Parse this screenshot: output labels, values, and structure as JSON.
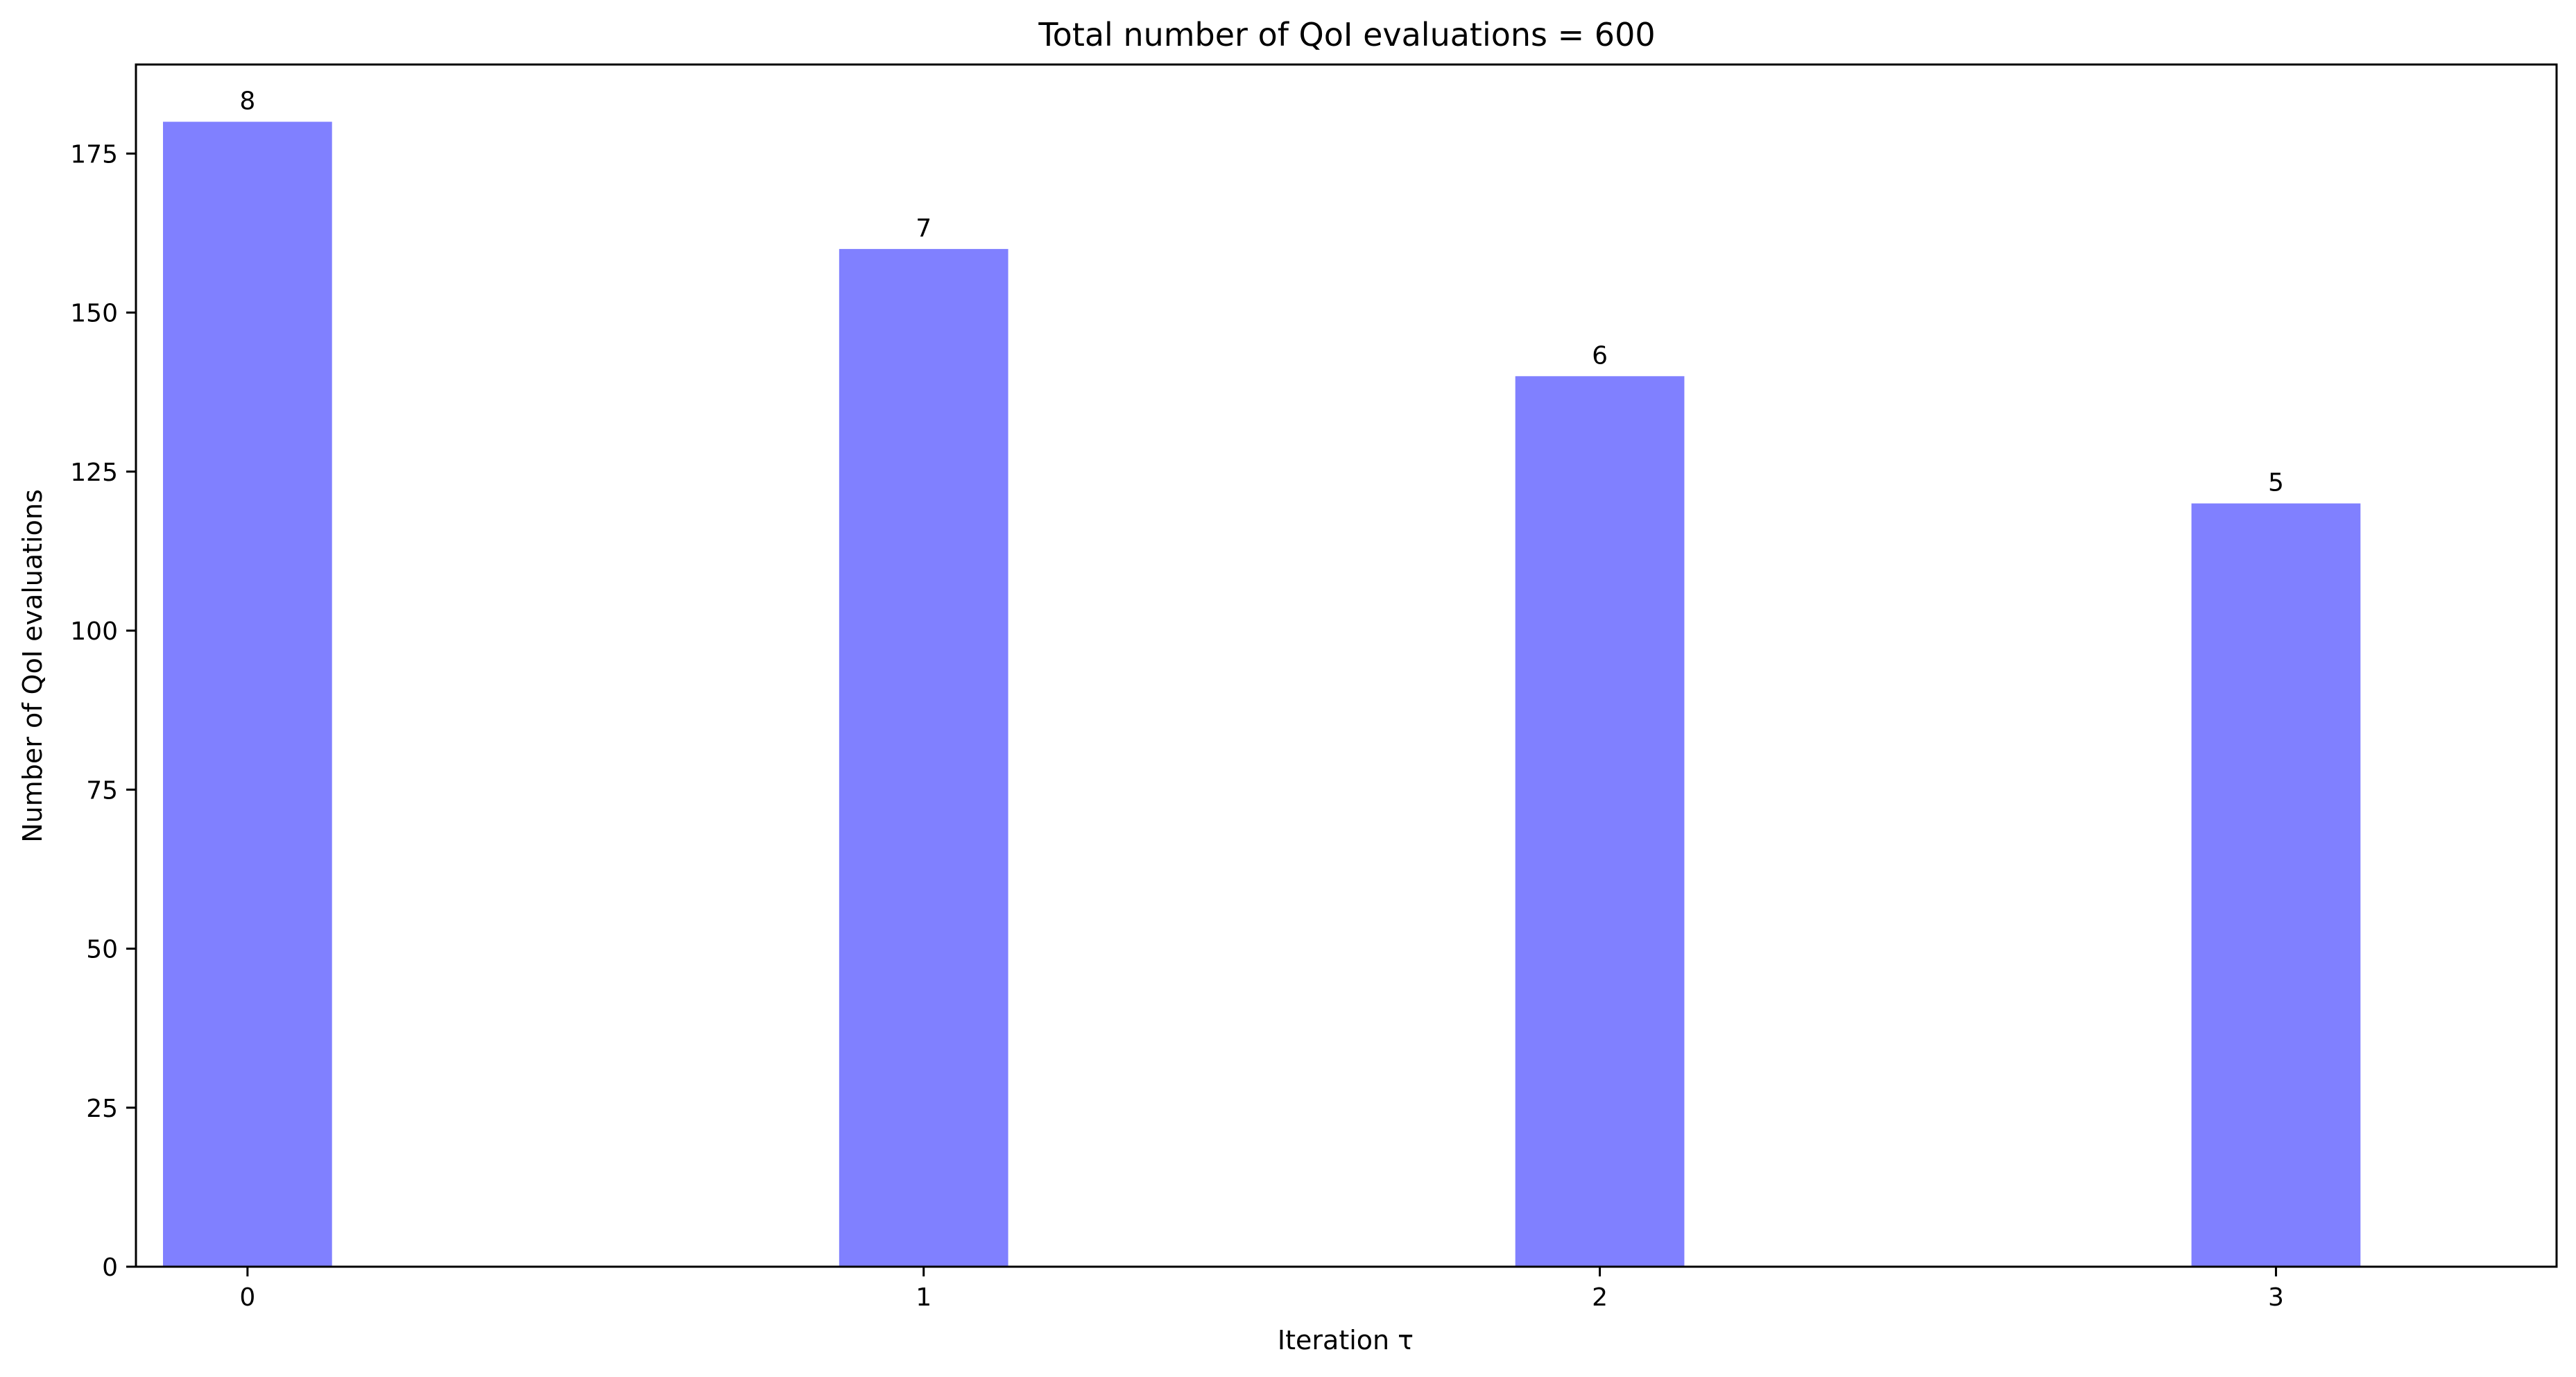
{
  "chart_data": {
    "type": "bar",
    "title": "Total number of QoI evaluations = 600",
    "xlabel": "Iteration τ",
    "ylabel": "Number of QoI evaluations",
    "categories": [
      "0",
      "1",
      "2",
      "3"
    ],
    "values": [
      180,
      160,
      140,
      120
    ],
    "bar_labels": [
      "8",
      "7",
      "6",
      "5"
    ],
    "ylim": [
      0,
      189
    ],
    "xlim": [
      -0.165,
      3.415
    ],
    "yticks": [
      0,
      25,
      50,
      75,
      100,
      125,
      150,
      175
    ],
    "bar_color": "#8080ff",
    "grid": false
  }
}
